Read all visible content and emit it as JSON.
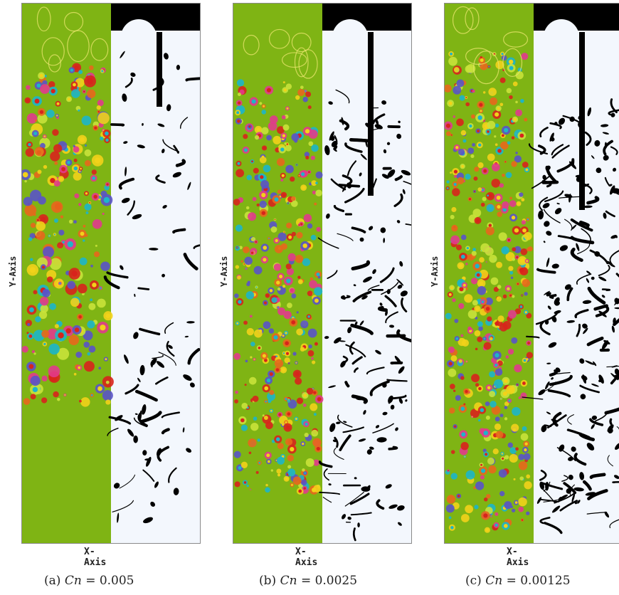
{
  "figure": {
    "y_axis_label": "Y-Axis",
    "x_axis_label": "X-Axis",
    "colors": {
      "vorticity_background": "#7fb414",
      "phase_light": "#f3f7fd",
      "phase_dark": "#000000"
    },
    "panels": [
      {
        "caption_prefix": "(a)",
        "caption_symbol": "Cn",
        "caption_value": "= 0.005"
      },
      {
        "caption_prefix": "(b)",
        "caption_symbol": "Cn",
        "caption_value": "= 0.0025"
      },
      {
        "caption_prefix": "(c)",
        "caption_symbol": "Cn",
        "caption_value": "= 0.00125"
      }
    ]
  }
}
